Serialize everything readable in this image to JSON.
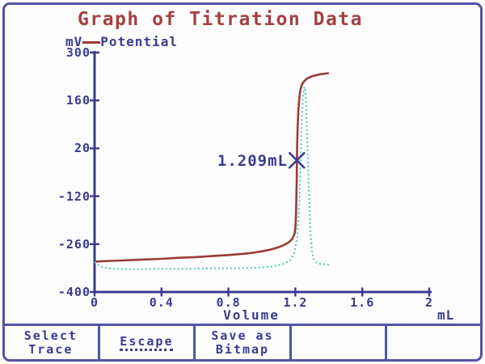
{
  "title": "Graph of Titration Data",
  "legend": {
    "unit": "mV",
    "label": "Potential"
  },
  "colors": {
    "navy": "#3a3a92",
    "border": "#5353a4",
    "title_red": "#a54040",
    "potential_red": "#9a3b37",
    "derivative_cyan": "#4cc5bb",
    "background": "#fdfdfd"
  },
  "chart_data": {
    "type": "line",
    "title": "Graph of Titration Data",
    "xlabel": "Volume",
    "x_unit": "mL",
    "ylabel": "Potential",
    "y_unit": "mV",
    "xlim": [
      0,
      2
    ],
    "ylim": [
      -400,
      300
    ],
    "grid": false,
    "legend_position": "top-left",
    "x_tick_labels": [
      "0",
      "0.4",
      "0.8",
      "1.2",
      "1.6",
      "2"
    ],
    "x_tick_values": [
      0,
      0.4,
      0.8,
      1.2,
      1.6,
      2
    ],
    "y_tick_labels": [
      "300",
      "160",
      "20",
      "-120",
      "-260",
      "-400"
    ],
    "y_tick_values": [
      300,
      160,
      20,
      -120,
      -260,
      -400
    ],
    "marker": {
      "x": 1.209,
      "y": -15,
      "label": "1.209mL"
    },
    "series": [
      {
        "name": "Potential",
        "style": "solid",
        "points": [
          [
            0,
            -311
          ],
          [
            0.05,
            -310
          ],
          [
            0.1,
            -309
          ],
          [
            0.2,
            -307
          ],
          [
            0.3,
            -305
          ],
          [
            0.4,
            -303
          ],
          [
            0.5,
            -300
          ],
          [
            0.6,
            -298
          ],
          [
            0.7,
            -295
          ],
          [
            0.8,
            -292
          ],
          [
            0.9,
            -288
          ],
          [
            0.95,
            -285
          ],
          [
            1.0,
            -281
          ],
          [
            1.05,
            -276
          ],
          [
            1.1,
            -269
          ],
          [
            1.13,
            -263
          ],
          [
            1.16,
            -255
          ],
          [
            1.18,
            -246
          ],
          [
            1.195,
            -230
          ],
          [
            1.2,
            -213
          ],
          [
            1.204,
            -175
          ],
          [
            1.206,
            -130
          ],
          [
            1.208,
            -70
          ],
          [
            1.209,
            -15
          ],
          [
            1.211,
            35
          ],
          [
            1.214,
            85
          ],
          [
            1.218,
            130
          ],
          [
            1.223,
            165
          ],
          [
            1.23,
            192
          ],
          [
            1.24,
            207
          ],
          [
            1.25,
            215
          ],
          [
            1.27,
            224
          ],
          [
            1.3,
            231
          ],
          [
            1.34,
            236
          ],
          [
            1.4,
            240
          ]
        ]
      },
      {
        "name": "",
        "style": "dotted",
        "points": [
          [
            0,
            -312
          ],
          [
            0.02,
            -320
          ],
          [
            0.05,
            -328
          ],
          [
            0.08,
            -331
          ],
          [
            0.12,
            -332
          ],
          [
            0.2,
            -333
          ],
          [
            0.3,
            -333
          ],
          [
            0.4,
            -332
          ],
          [
            0.5,
            -332
          ],
          [
            0.6,
            -332
          ],
          [
            0.7,
            -331
          ],
          [
            0.8,
            -331
          ],
          [
            0.9,
            -330
          ],
          [
            1.0,
            -328
          ],
          [
            1.05,
            -326
          ],
          [
            1.1,
            -322
          ],
          [
            1.14,
            -316
          ],
          [
            1.17,
            -306
          ],
          [
            1.19,
            -290
          ],
          [
            1.2,
            -272
          ],
          [
            1.21,
            -240
          ],
          [
            1.218,
            -190
          ],
          [
            1.225,
            -120
          ],
          [
            1.23,
            -40
          ],
          [
            1.235,
            50
          ],
          [
            1.24,
            120
          ],
          [
            1.245,
            168
          ],
          [
            1.25,
            192
          ],
          [
            1.255,
            200
          ],
          [
            1.26,
            185
          ],
          [
            1.265,
            140
          ],
          [
            1.27,
            70
          ],
          [
            1.275,
            -10
          ],
          [
            1.28,
            -90
          ],
          [
            1.285,
            -160
          ],
          [
            1.29,
            -225
          ],
          [
            1.3,
            -282
          ],
          [
            1.31,
            -305
          ],
          [
            1.325,
            -314
          ],
          [
            1.35,
            -318
          ],
          [
            1.4,
            -320
          ]
        ]
      }
    ]
  },
  "toolbar": {
    "buttons": [
      {
        "name": "select-trace",
        "lines": [
          "Select",
          "Trace"
        ],
        "underline": false
      },
      {
        "name": "escape",
        "lines": [
          "Escape"
        ],
        "underline": true
      },
      {
        "name": "save-as-bitmap",
        "lines": [
          "Save as",
          "Bitmap"
        ],
        "underline": false
      },
      {
        "name": "empty-1",
        "lines": [],
        "underline": false
      },
      {
        "name": "empty-2",
        "lines": [],
        "underline": false
      }
    ]
  }
}
